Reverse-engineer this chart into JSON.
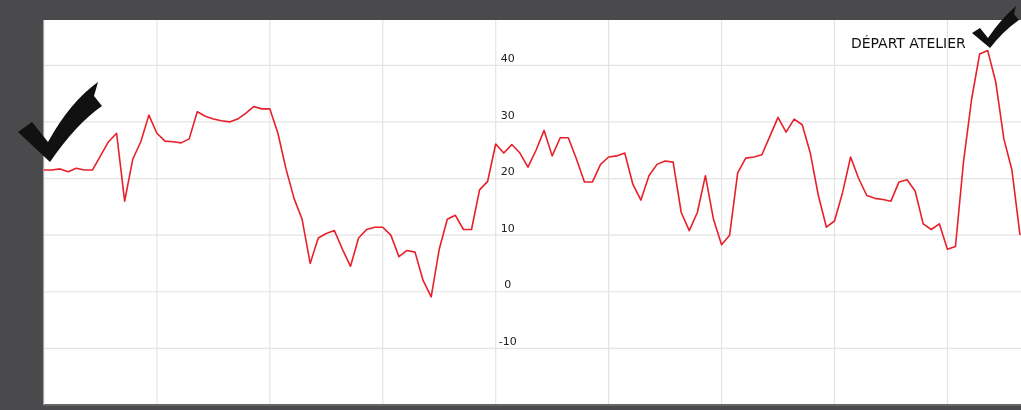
{
  "chart_data": {
    "type": "line",
    "categories": [
      null,
      null,
      null,
      null,
      null,
      null,
      null,
      null,
      null,
      null,
      null,
      null,
      null,
      null,
      null,
      null,
      null,
      null,
      null,
      null,
      null,
      null,
      null,
      null,
      null,
      null,
      null,
      null,
      null,
      null,
      null,
      null,
      null,
      null,
      null,
      null,
      null,
      null,
      null,
      null,
      null,
      null,
      null,
      null,
      null,
      null,
      null,
      null,
      null,
      null,
      null,
      null,
      null,
      null,
      null,
      null,
      null,
      null,
      null,
      null,
      null,
      null,
      null,
      null,
      null,
      null,
      null,
      null,
      null,
      null,
      null,
      null,
      null,
      null,
      null,
      null,
      null,
      null,
      null,
      null,
      null,
      null,
      null,
      null,
      null,
      null,
      null,
      null,
      null,
      null,
      null,
      null,
      null,
      null,
      null,
      null,
      null,
      null,
      null,
      null,
      null,
      null,
      null,
      null,
      null,
      null,
      null,
      null,
      null,
      null,
      null,
      null,
      null,
      null,
      null,
      null,
      null,
      null,
      null,
      null,
      null,
      null
    ],
    "series": [
      {
        "color": "#e8202a",
        "values": [
          21.5,
          21.5,
          21.7,
          21.2,
          21.8,
          21.5,
          21.5,
          24,
          26.5,
          28,
          16,
          23.4,
          26.5,
          31.2,
          28,
          26.6,
          26.5,
          26.3,
          27,
          31.8,
          31,
          30.5,
          30.2,
          30,
          30.5,
          31.5,
          32.7,
          32.3,
          32.3,
          28,
          21.7,
          16.5,
          12.8,
          5,
          9.5,
          10.3,
          10.8,
          7.5,
          4.5,
          9.5,
          11,
          11.4,
          11.4,
          10,
          6.2,
          7.3,
          7,
          2,
          -0.9,
          7.5,
          12.8,
          13.5,
          11,
          11,
          18,
          19.5,
          26.1,
          24.5,
          26,
          24.5,
          22,
          25,
          28.5,
          24,
          27.2,
          27.2,
          23.5,
          19.4,
          19.4,
          22.5,
          23.8,
          24,
          24.5,
          19,
          16.2,
          20.5,
          22.5,
          23.1,
          22.9,
          14,
          10.8,
          14,
          20.5,
          12.8,
          8.3,
          10,
          21,
          23.6,
          23.8,
          24.2,
          27.5,
          30.8,
          28.2,
          30.5,
          29.5,
          24.5,
          17,
          11.4,
          12.5,
          17.5,
          23.8,
          20,
          17,
          16.5,
          16.3,
          16,
          19.4,
          19.8,
          17.8,
          12,
          11,
          12,
          7.5,
          8,
          23,
          34,
          42,
          42.6,
          37,
          27,
          21.5,
          10
        ]
      }
    ],
    "ylim": [
      -20,
      48
    ],
    "yticks": [
      -10,
      0,
      10,
      20,
      30,
      40
    ],
    "grid": true,
    "tick_labels": "y",
    "annotations": [
      "DÉPART ATELIER"
    ]
  }
}
